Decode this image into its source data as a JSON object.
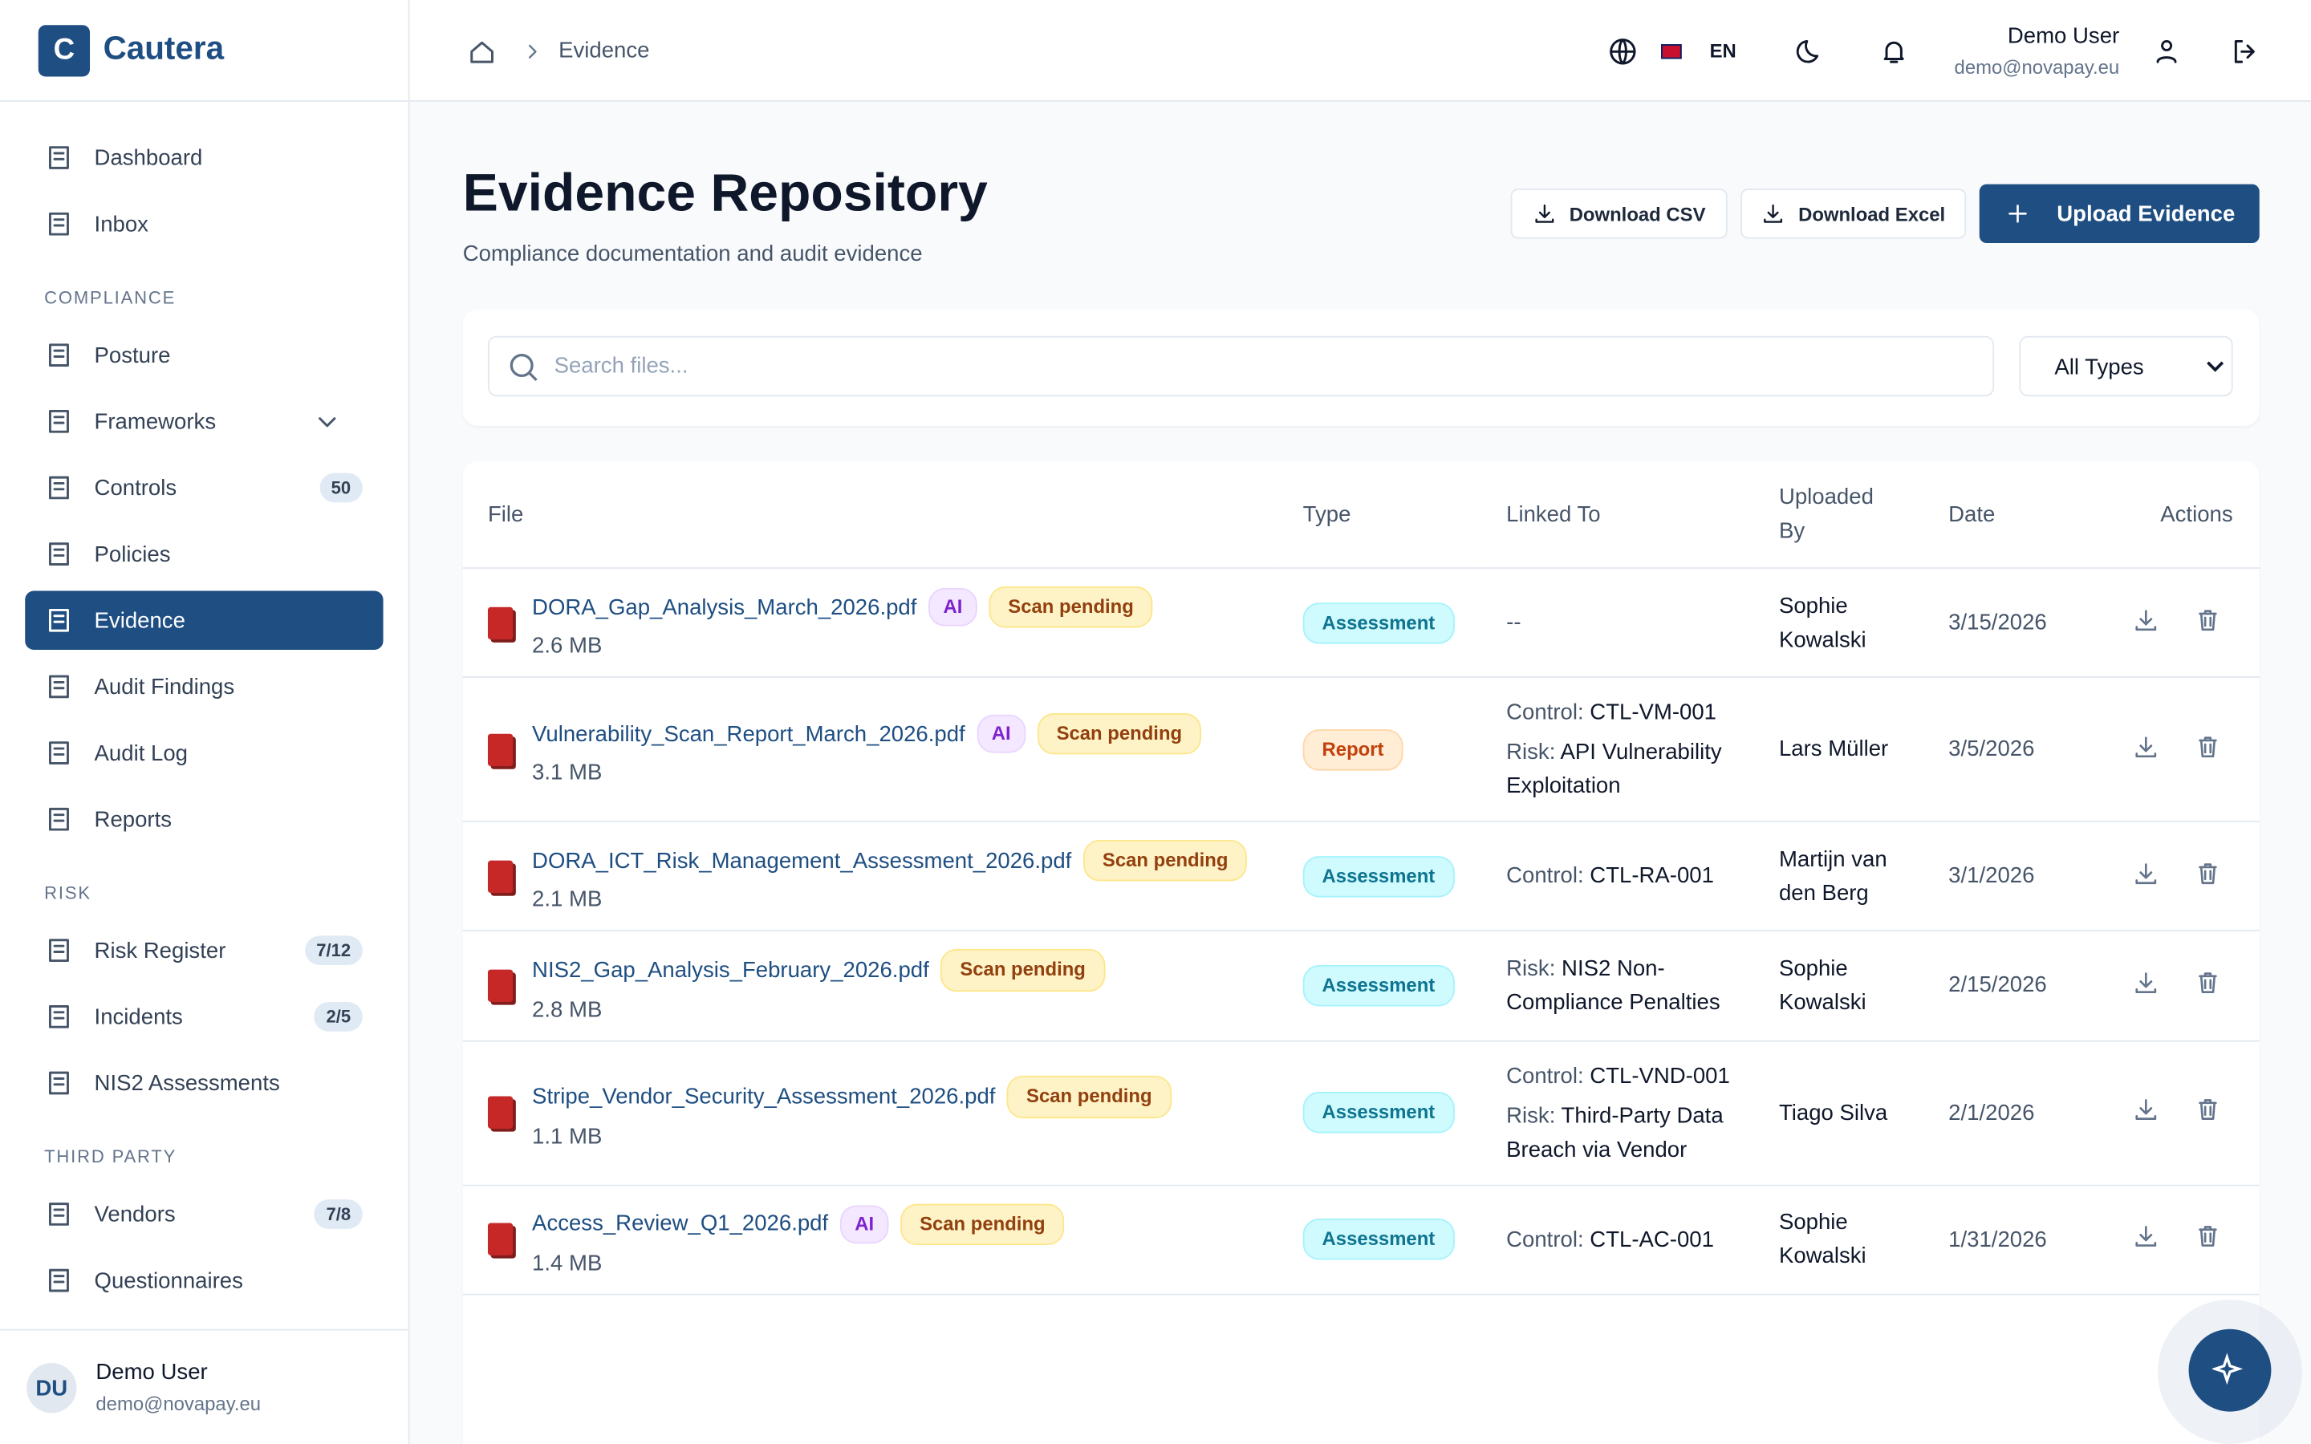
{
  "brand": {
    "logo": "C",
    "name": "Cautera"
  },
  "nav": {
    "main": [
      {
        "label": "Dashboard"
      },
      {
        "label": "Inbox"
      }
    ],
    "sections": [
      {
        "title": "COMPLIANCE",
        "items": [
          {
            "label": "Posture"
          },
          {
            "label": "Frameworks",
            "expand": true
          },
          {
            "label": "Controls",
            "badge": "50"
          },
          {
            "label": "Policies"
          },
          {
            "label": "Evidence",
            "active": true
          },
          {
            "label": "Audit Findings"
          },
          {
            "label": "Audit Log"
          },
          {
            "label": "Reports"
          }
        ]
      },
      {
        "title": "RISK",
        "items": [
          {
            "label": "Risk Register",
            "badge": "7/12"
          },
          {
            "label": "Incidents",
            "badge": "2/5"
          },
          {
            "label": "NIS2 Assessments"
          }
        ]
      },
      {
        "title": "THIRD PARTY",
        "items": [
          {
            "label": "Vendors",
            "badge": "7/8"
          },
          {
            "label": "Questionnaires"
          }
        ]
      }
    ]
  },
  "sidebar_user": {
    "initials": "DU",
    "name": "Demo User",
    "email": "demo@novapay.eu"
  },
  "header": {
    "breadcrumb": "Evidence",
    "language": "EN",
    "user_name": "Demo User",
    "user_email": "demo@novapay.eu"
  },
  "page": {
    "title": "Evidence Repository",
    "subtitle": "Compliance documentation and audit evidence",
    "buttons": [
      "Download CSV",
      "Download Excel",
      "Upload Evidence"
    ],
    "search_placeholder": "Search files...",
    "filter": "All Types"
  },
  "table": {
    "columns": [
      "File",
      "Type",
      "Linked To",
      "Uploaded By",
      "Date",
      "Actions"
    ],
    "rows": [
      {
        "file": "DORA_Gap_Analysis_March_2026.pdf",
        "size": "2.6 MB",
        "ai": "AI",
        "scan": "Scan pending",
        "type": "Assessment",
        "linked_text": "--",
        "uploaded_by": "Sophie Kowalski",
        "date": "3/15/2026"
      },
      {
        "file": "Vulnerability_Scan_Report_March_2026.pdf",
        "size": "3.1 MB",
        "ai": "AI",
        "scan": "Scan pending",
        "type": "Report",
        "linked": [
          {
            "label": "Control:",
            "value": "CTL-VM-001"
          },
          {
            "label": "Risk:",
            "value": "API Vulnerability Exploitation"
          }
        ],
        "uploaded_by": "Lars Müller",
        "date": "3/5/2026"
      },
      {
        "file": "DORA_ICT_Risk_Management_Assessment_2026.pdf",
        "size": "2.1 MB",
        "scan": "Scan pending",
        "type": "Assessment",
        "linked": [
          {
            "label": "Control:",
            "value": "CTL-RA-001"
          }
        ],
        "uploaded_by": "Martijn van den Berg",
        "date": "3/1/2026"
      },
      {
        "file": "NIS2_Gap_Analysis_February_2026.pdf",
        "size": "2.8 MB",
        "scan": "Scan pending",
        "type": "Assessment",
        "linked": [
          {
            "label": "Risk:",
            "value": "NIS2 Non-Compliance Penalties"
          }
        ],
        "uploaded_by": "Sophie Kowalski",
        "date": "2/15/2026"
      },
      {
        "file": "Stripe_Vendor_Security_Assessment_2026.pdf",
        "size": "1.1 MB",
        "scan": "Scan pending",
        "type": "Assessment",
        "linked": [
          {
            "label": "Control:",
            "value": "CTL-VND-001"
          },
          {
            "label": "Risk:",
            "value": "Third-Party Data Breach via Vendor"
          }
        ],
        "uploaded_by": "Tiago Silva",
        "date": "2/1/2026"
      },
      {
        "file": "Access_Review_Q1_2026.pdf",
        "size": "1.4 MB",
        "ai": "AI",
        "scan": "Scan pending",
        "type": "Assessment",
        "linked": [
          {
            "label": "Control:",
            "value": "CTL-AC-001"
          }
        ],
        "uploaded_by": "Sophie Kowalski",
        "date": "1/31/2026"
      }
    ]
  }
}
